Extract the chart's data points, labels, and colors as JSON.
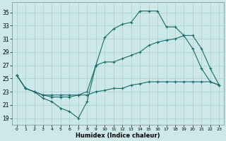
{
  "xlabel": "Humidex (Indice chaleur)",
  "bg_color": "#cce8e8",
  "grid_color": "#aacfcf",
  "line_color": "#1a6b6b",
  "xlim": [
    -0.5,
    23.5
  ],
  "ylim": [
    18.0,
    36.5
  ],
  "xticks": [
    0,
    1,
    2,
    3,
    4,
    5,
    6,
    7,
    8,
    9,
    10,
    11,
    12,
    13,
    14,
    15,
    16,
    17,
    18,
    19,
    20,
    21,
    22,
    23
  ],
  "yticks": [
    19,
    21,
    23,
    25,
    27,
    29,
    31,
    33,
    35
  ],
  "line1_x": [
    0,
    1,
    2,
    3,
    4,
    5,
    6,
    7,
    8,
    9,
    10,
    11,
    12,
    13,
    14,
    15,
    16,
    17,
    18,
    19,
    20,
    21,
    22,
    23
  ],
  "line1_y": [
    25.5,
    23.5,
    23.0,
    22.0,
    21.5,
    20.5,
    20.0,
    19.0,
    21.5,
    27.0,
    31.2,
    32.5,
    33.2,
    33.5,
    35.2,
    35.2,
    35.2,
    32.8,
    32.8,
    31.5,
    29.5,
    26.5,
    24.5,
    24.0
  ],
  "line2_x": [
    0,
    1,
    2,
    3,
    4,
    5,
    6,
    7,
    8,
    9,
    10,
    11,
    12,
    13,
    14,
    15,
    16,
    17,
    18,
    19,
    20,
    21,
    22,
    23
  ],
  "line2_y": [
    25.5,
    23.5,
    23.0,
    22.5,
    22.5,
    22.5,
    22.5,
    22.5,
    23.0,
    27.0,
    27.5,
    27.5,
    28.0,
    28.5,
    29.0,
    30.0,
    30.5,
    30.8,
    31.0,
    31.5,
    31.5,
    29.5,
    26.5,
    24.0
  ],
  "line3_x": [
    0,
    1,
    2,
    3,
    4,
    5,
    6,
    7,
    8,
    9,
    10,
    11,
    12,
    13,
    14,
    15,
    16,
    17,
    18,
    19,
    20,
    21,
    22,
    23
  ],
  "line3_y": [
    25.5,
    23.5,
    23.0,
    22.5,
    22.2,
    22.2,
    22.2,
    22.5,
    22.5,
    23.0,
    23.2,
    23.5,
    23.5,
    24.0,
    24.2,
    24.5,
    24.5,
    24.5,
    24.5,
    24.5,
    24.5,
    24.5,
    24.5,
    24.0
  ]
}
